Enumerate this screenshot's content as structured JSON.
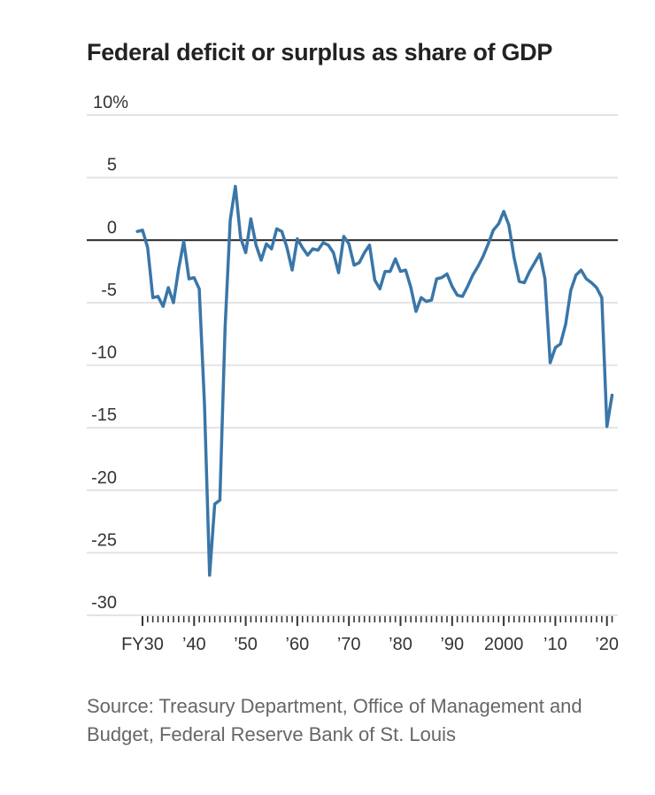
{
  "chart_data": {
    "type": "line",
    "title": "Federal deficit or surplus as share of GDP",
    "xlabel": "",
    "ylabel": "",
    "ylim": [
      -30,
      10
    ],
    "xlim": [
      1929,
      2021
    ],
    "grid": true,
    "y_ticks": [
      10,
      5,
      0,
      -5,
      -10,
      -15,
      -20,
      -25,
      -30
    ],
    "y_tick_labels": [
      "10%",
      "5",
      "0",
      "-5",
      "-10",
      "-15",
      "-20",
      "-25",
      "-30"
    ],
    "x_ticks": [
      1930,
      1940,
      1950,
      1960,
      1970,
      1980,
      1990,
      2000,
      2010,
      2020
    ],
    "x_tick_labels": [
      "FY30",
      "’40",
      "’50",
      "’60",
      "’70",
      "’80",
      "’90",
      "2000",
      "’10",
      "’20"
    ],
    "series": [
      {
        "name": "Deficit or surplus (% of GDP)",
        "color": "#3a76a8",
        "x": [
          1929,
          1930,
          1931,
          1932,
          1933,
          1934,
          1935,
          1936,
          1937,
          1938,
          1939,
          1940,
          1941,
          1942,
          1943,
          1944,
          1945,
          1946,
          1947,
          1948,
          1949,
          1950,
          1951,
          1952,
          1953,
          1954,
          1955,
          1956,
          1957,
          1958,
          1959,
          1960,
          1961,
          1962,
          1963,
          1964,
          1965,
          1966,
          1967,
          1968,
          1969,
          1970,
          1971,
          1972,
          1973,
          1974,
          1975,
          1976,
          1977,
          1978,
          1979,
          1980,
          1981,
          1982,
          1983,
          1984,
          1985,
          1986,
          1987,
          1988,
          1989,
          1990,
          1991,
          1992,
          1993,
          1994,
          1995,
          1996,
          1997,
          1998,
          1999,
          2000,
          2001,
          2002,
          2003,
          2004,
          2005,
          2006,
          2007,
          2008,
          2009,
          2010,
          2011,
          2012,
          2013,
          2014,
          2015,
          2016,
          2017,
          2018,
          2019,
          2020,
          2021
        ],
        "values": [
          0.7,
          0.8,
          -0.6,
          -4.6,
          -4.5,
          -5.3,
          -3.8,
          -5.0,
          -2.3,
          -0.1,
          -3.1,
          -3.0,
          -3.9,
          -13.1,
          -26.8,
          -21.1,
          -20.8,
          -7.0,
          1.6,
          4.3,
          0.2,
          -1.0,
          1.7,
          -0.4,
          -1.6,
          -0.3,
          -0.7,
          0.9,
          0.7,
          -0.6,
          -2.4,
          0.1,
          -0.6,
          -1.2,
          -0.7,
          -0.8,
          -0.2,
          -0.4,
          -1.0,
          -2.6,
          0.3,
          -0.3,
          -2.0,
          -1.8,
          -1.0,
          -0.4,
          -3.2,
          -3.9,
          -2.5,
          -2.5,
          -1.5,
          -2.5,
          -2.4,
          -3.8,
          -5.7,
          -4.6,
          -4.9,
          -4.8,
          -3.1,
          -3.0,
          -2.7,
          -3.7,
          -4.4,
          -4.5,
          -3.7,
          -2.8,
          -2.1,
          -1.3,
          -0.3,
          0.8,
          1.3,
          2.3,
          1.2,
          -1.4,
          -3.3,
          -3.4,
          -2.5,
          -1.8,
          -1.1,
          -3.1,
          -9.8,
          -8.6,
          -8.3,
          -6.7,
          -4.0,
          -2.8,
          -2.4,
          -3.1,
          -3.4,
          -3.8,
          -4.6,
          -14.9,
          -12.4
        ]
      }
    ]
  },
  "source": "Source: Treasury Department, Office of Management and Budget, Federal Reserve Bank of St. Louis"
}
